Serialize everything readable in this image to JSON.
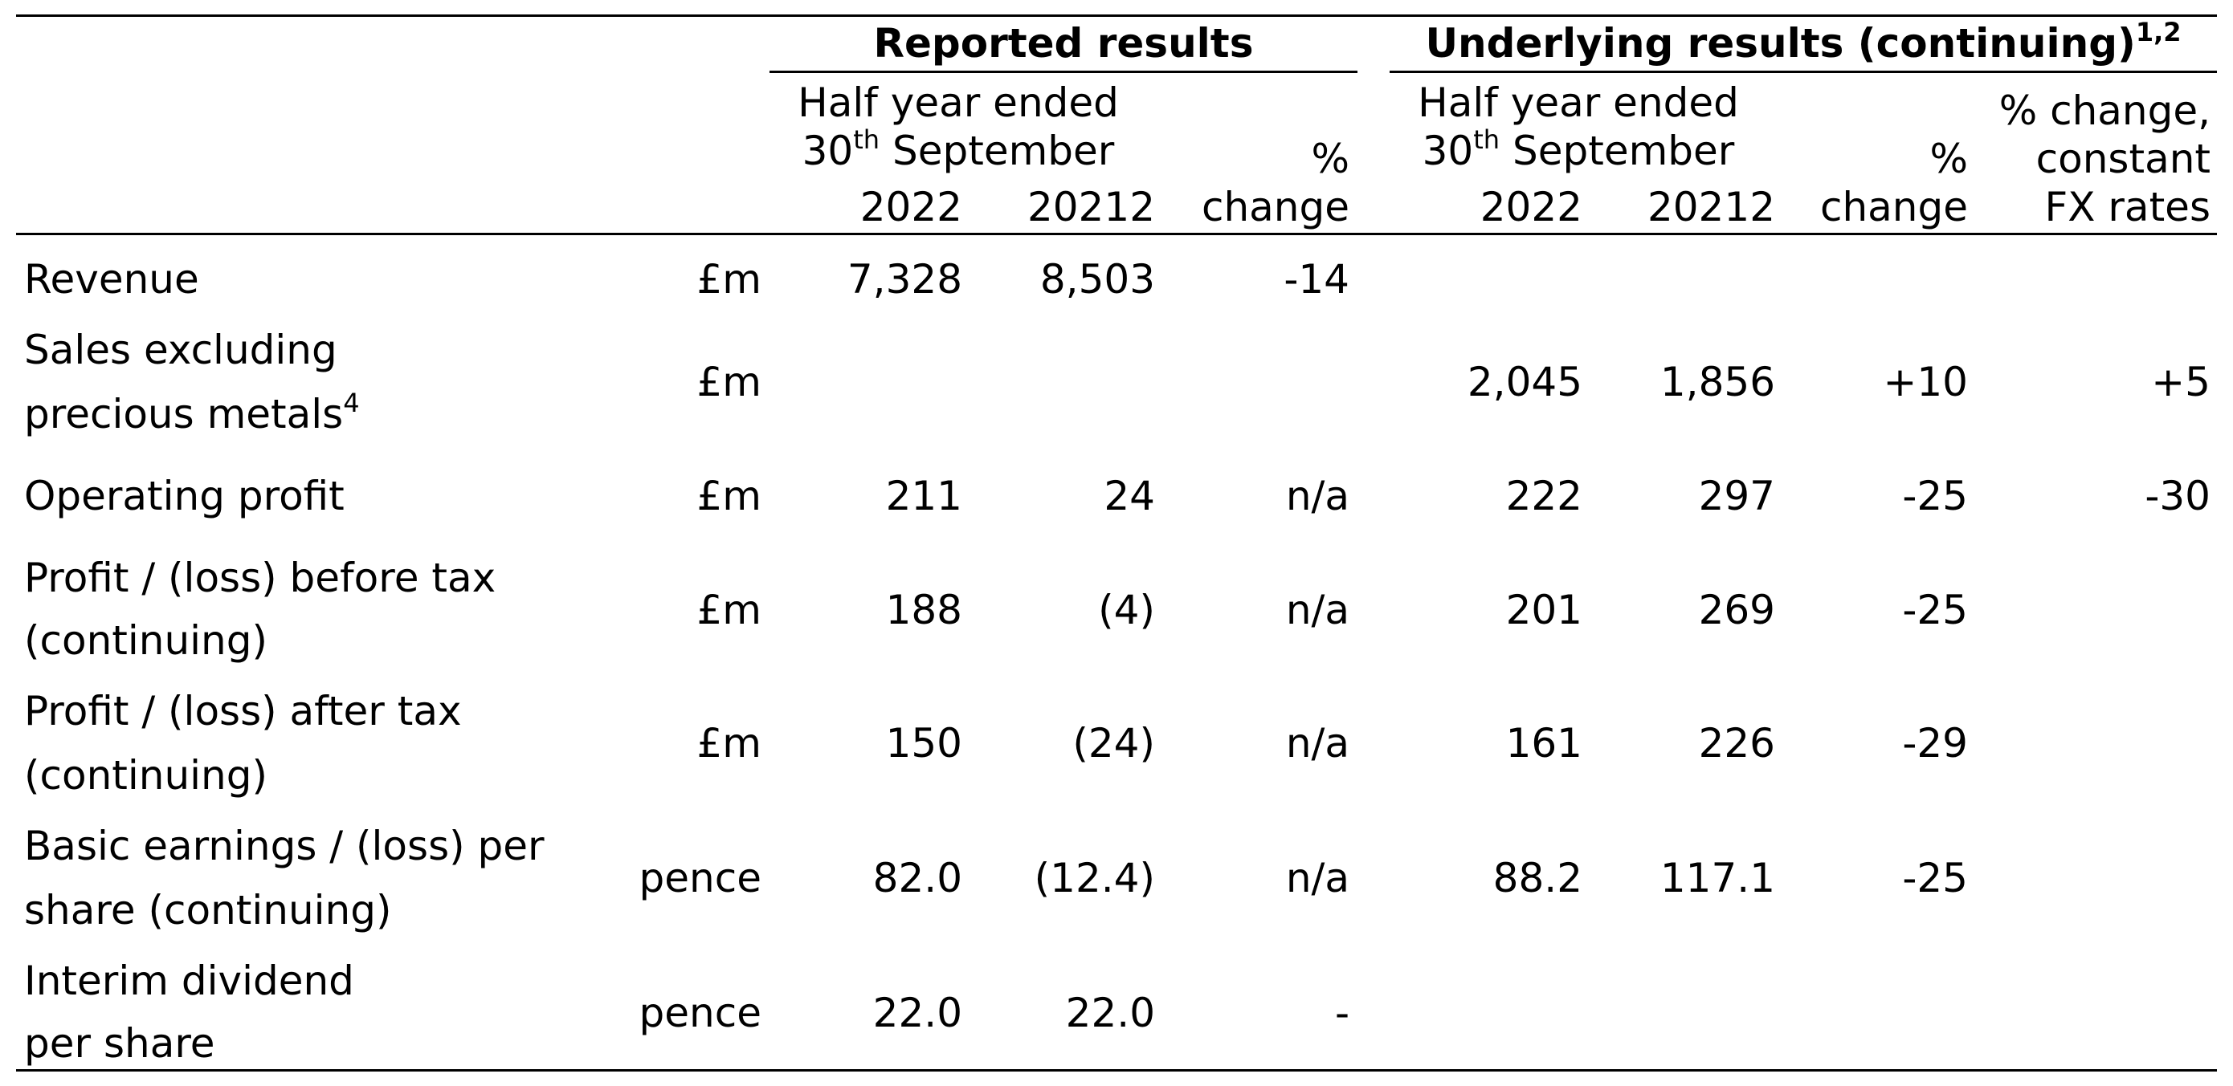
{
  "header": {
    "reported_title": "Reported results",
    "underlying_title": "Underlying results (continuing)",
    "underlying_title_sup": "1,2",
    "half_year_ended": "Half year ended",
    "day": "30",
    "day_suffix": "th",
    "month": "September",
    "year_current": "2022",
    "year_prior": "2021",
    "year_prior_sup": "2",
    "pct_symbol": "%",
    "change_word": "change",
    "cfx_line1": "% change,",
    "cfx_line2": "constant",
    "cfx_line3": "FX rates"
  },
  "rows": [
    {
      "label1": "Revenue",
      "label2": "",
      "label_sup": "",
      "unit": "£m",
      "rep_2022": "7,328",
      "rep_2021": "8,503",
      "rep_change": "-14",
      "und_2022": "",
      "und_2021": "",
      "und_change": "",
      "cfx": ""
    },
    {
      "label1": "Sales excluding",
      "label2": "precious metals",
      "label_sup": "4",
      "unit": "£m",
      "rep_2022": "",
      "rep_2021": "",
      "rep_change": "",
      "und_2022": "2,045",
      "und_2021": "1,856",
      "und_change": "+10",
      "cfx": "+5"
    },
    {
      "label1": "Operating profit",
      "label2": "",
      "label_sup": "",
      "unit": "£m",
      "rep_2022": "211",
      "rep_2021": "24",
      "rep_change": "n/a",
      "und_2022": "222",
      "und_2021": "297",
      "und_change": "-25",
      "cfx": "-30"
    },
    {
      "label1": "Profit / (loss) before tax",
      "label2": "(continuing)",
      "label_sup": "",
      "unit": "£m",
      "rep_2022": "188",
      "rep_2021": "(4)",
      "rep_change": "n/a",
      "und_2022": "201",
      "und_2021": "269",
      "und_change": "-25",
      "cfx": ""
    },
    {
      "label1": "Profit / (loss) after tax",
      "label2": "(continuing)",
      "label_sup": "",
      "unit": "£m",
      "rep_2022": "150",
      "rep_2021": "(24)",
      "rep_change": "n/a",
      "und_2022": "161",
      "und_2021": "226",
      "und_change": "-29",
      "cfx": ""
    },
    {
      "label1": "Basic earnings / (loss) per",
      "label2": "share (continuing)",
      "label_sup": "",
      "unit": "pence",
      "rep_2022": "82.0",
      "rep_2021": "(12.4)",
      "rep_change": "n/a",
      "und_2022": "88.2",
      "und_2021": "117.1",
      "und_change": "-25",
      "cfx": ""
    },
    {
      "label1": "Interim dividend",
      "label2": "per share",
      "label_sup": "",
      "unit": "pence",
      "rep_2022": "22.0",
      "rep_2021": "22.0",
      "rep_change": "-",
      "und_2022": "",
      "und_2021": "",
      "und_change": "",
      "cfx": ""
    }
  ]
}
